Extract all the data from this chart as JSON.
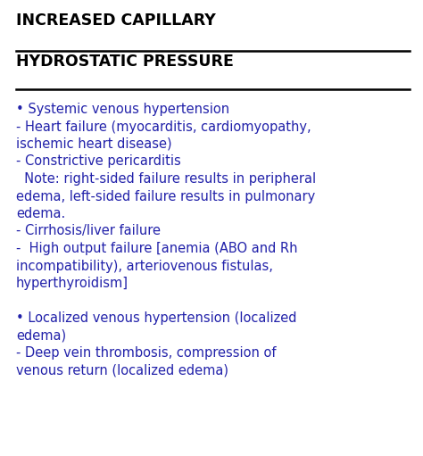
{
  "title_line1": "INCREASED CAPILLARY",
  "title_line2": "HYDROSTATIC PRESSURE",
  "title_color": "#000000",
  "title_fontsize": 12.5,
  "body_color": "#2222aa",
  "body_fontsize": 10.5,
  "background_color": "#ffffff",
  "lines": [
    "• Systemic venous hypertension",
    "- Heart failure (myocarditis, cardiomyopathy,",
    "ischemic heart disease)",
    "- Constrictive pericarditis",
    "  Note: right-sided failure results in peripheral",
    "edema, left-sided failure results in pulmonary",
    "edema.",
    "- Cirrhosis/liver failure",
    "-  High output failure [anemia (ABO and Rh",
    "incompatibility), arteriovenous fistulas,",
    "hyperthyroidism]",
    "",
    "• Localized venous hypertension (localized",
    "edema)",
    "- Deep vein thrombosis, compression of",
    "venous return (localized edema)"
  ],
  "figwidth": 4.74,
  "figheight": 5.11,
  "dpi": 100
}
